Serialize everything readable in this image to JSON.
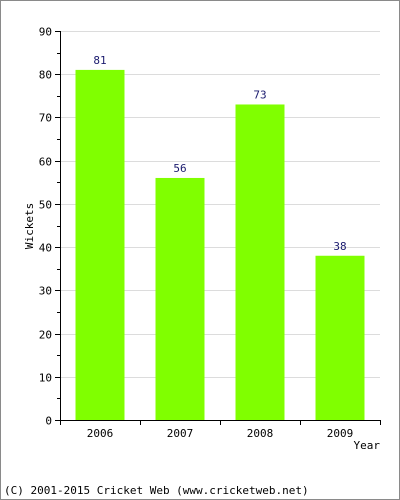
{
  "chart_data": {
    "type": "bar",
    "categories": [
      "2006",
      "2007",
      "2008",
      "2009"
    ],
    "values": [
      81,
      56,
      73,
      38
    ],
    "data_labels": [
      "81",
      "56",
      "73",
      "38"
    ],
    "title": "",
    "xlabel": "Year",
    "ylabel": "Wickets",
    "ylim": [
      0,
      90
    ],
    "yticks": [
      0,
      10,
      20,
      30,
      40,
      50,
      60,
      70,
      80,
      90
    ],
    "grid": "horizontal",
    "bar_color": "#80ff00",
    "label_color": "#1a1a6e"
  },
  "footer": "(C) 2001-2015 Cricket Web (www.cricketweb.net)"
}
